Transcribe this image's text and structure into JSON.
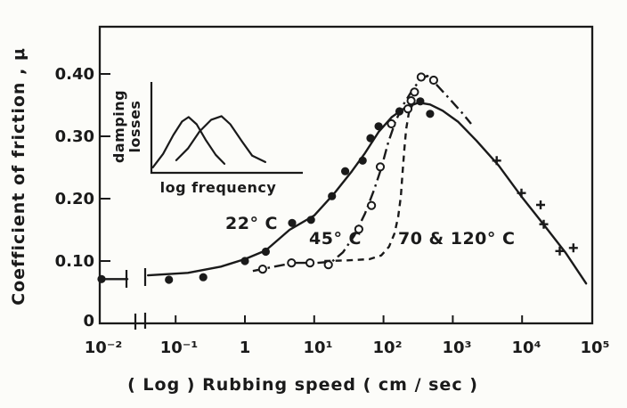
{
  "colors": {
    "ink": "#1a1a1a",
    "background": "#fcfcf9"
  },
  "chart_data": {
    "type": "line",
    "title": "",
    "xlabel": "( Log ) Rubbing speed ( cm / sec )",
    "ylabel": "Coefficient of friction , μ",
    "x_scale": "log",
    "x_range": [
      0.01,
      100000
    ],
    "ylim": [
      0,
      0.45
    ],
    "grid": false,
    "axis_break_x": [
      0.015,
      0.04
    ],
    "x_ticks": [
      {
        "value": 0.01,
        "label": "10⁻²"
      },
      {
        "value": 0.1,
        "label": "10⁻¹"
      },
      {
        "value": 1,
        "label": "1"
      },
      {
        "value": 10,
        "label": "10¹"
      },
      {
        "value": 100,
        "label": "10²"
      },
      {
        "value": 1000,
        "label": "10³"
      },
      {
        "value": 10000,
        "label": "10⁴"
      },
      {
        "value": 100000,
        "label": "10⁵"
      }
    ],
    "y_ticks": [
      {
        "value": 0.4,
        "label": "0.40"
      },
      {
        "value": 0.3,
        "label": "0.30"
      },
      {
        "value": 0.2,
        "label": "0.20"
      },
      {
        "value": 0.1,
        "label": "0.10"
      },
      {
        "value": 0,
        "label": "0"
      }
    ],
    "series": [
      {
        "name": "22° C",
        "marker": "filled-circle",
        "line": "solid",
        "points": [
          [
            0.01,
            0.071
          ],
          [
            0.08,
            0.07
          ],
          [
            0.25,
            0.074
          ],
          [
            1,
            0.1
          ],
          [
            2,
            0.115
          ],
          [
            4.8,
            0.161
          ],
          [
            9,
            0.166
          ],
          [
            18,
            0.204
          ],
          [
            28,
            0.244
          ],
          [
            50,
            0.261
          ],
          [
            65,
            0.297
          ],
          [
            85,
            0.316
          ],
          [
            170,
            0.34
          ],
          [
            340,
            0.356
          ],
          [
            470,
            0.336
          ]
        ],
        "plus_points": [
          [
            4300,
            0.261
          ],
          [
            9800,
            0.209
          ],
          [
            18500,
            0.19
          ],
          [
            20500,
            0.159
          ],
          [
            35000,
            0.116
          ],
          [
            55000,
            0.121
          ]
        ],
        "curve": [
          [
            0.04,
            0.077
          ],
          [
            0.15,
            0.081
          ],
          [
            0.45,
            0.091
          ],
          [
            1,
            0.103
          ],
          [
            2,
            0.117
          ],
          [
            4.4,
            0.15
          ],
          [
            10,
            0.173
          ],
          [
            19,
            0.207
          ],
          [
            35,
            0.244
          ],
          [
            54,
            0.273
          ],
          [
            85,
            0.307
          ],
          [
            132,
            0.331
          ],
          [
            206,
            0.346
          ],
          [
            320,
            0.354
          ],
          [
            470,
            0.351
          ],
          [
            715,
            0.341
          ],
          [
            1200,
            0.323
          ],
          [
            2200,
            0.293
          ],
          [
            4600,
            0.253
          ],
          [
            9700,
            0.204
          ],
          [
            20000,
            0.16
          ],
          [
            42000,
            0.114
          ],
          [
            84000,
            0.064
          ]
        ]
      },
      {
        "name": "45° C",
        "marker": "open-circle",
        "line": "dash-dot",
        "points": [
          [
            1.8,
            0.087
          ],
          [
            4.7,
            0.097
          ],
          [
            8.7,
            0.097
          ],
          [
            16,
            0.094
          ],
          [
            44,
            0.151
          ],
          [
            67,
            0.189
          ],
          [
            90,
            0.251
          ],
          [
            130,
            0.32
          ],
          [
            225,
            0.344
          ],
          [
            250,
            0.357
          ],
          [
            280,
            0.371
          ],
          [
            350,
            0.395
          ],
          [
            530,
            0.39
          ]
        ],
        "curve": [
          [
            1.3,
            0.084
          ],
          [
            2.4,
            0.09
          ],
          [
            5,
            0.097
          ],
          [
            11,
            0.097
          ],
          [
            18,
            0.099
          ],
          [
            26,
            0.114
          ],
          [
            38,
            0.141
          ],
          [
            54,
            0.176
          ],
          [
            73,
            0.214
          ],
          [
            93,
            0.249
          ],
          [
            117,
            0.29
          ],
          [
            149,
            0.324
          ],
          [
            194,
            0.351
          ],
          [
            260,
            0.374
          ],
          [
            340,
            0.391
          ],
          [
            430,
            0.397
          ],
          [
            580,
            0.383
          ],
          [
            900,
            0.36
          ],
          [
            1330,
            0.339
          ],
          [
            1840,
            0.32
          ]
        ]
      },
      {
        "name": "70 & 120° C",
        "marker": "none",
        "line": "dashed",
        "points": [],
        "curve": [
          [
            14,
            0.1
          ],
          [
            30,
            0.101
          ],
          [
            63,
            0.103
          ],
          [
            93,
            0.109
          ],
          [
            120,
            0.123
          ],
          [
            144,
            0.144
          ],
          [
            163,
            0.171
          ],
          [
            178,
            0.204
          ],
          [
            188,
            0.24
          ],
          [
            200,
            0.279
          ],
          [
            212,
            0.311
          ],
          [
            232,
            0.337
          ],
          [
            270,
            0.354
          ]
        ]
      }
    ],
    "inset": {
      "xlabel": "log frequency",
      "ylabel_line1": "damping",
      "ylabel_line2": "losses",
      "description": "two overlapping bell-shaped curves of damping losses vs log frequency",
      "curves": [
        [
          [
            0.01,
            0.06
          ],
          [
            0.08,
            0.21
          ],
          [
            0.15,
            0.42
          ],
          [
            0.21,
            0.57
          ],
          [
            0.255,
            0.62
          ],
          [
            0.31,
            0.54
          ],
          [
            0.37,
            0.37
          ],
          [
            0.44,
            0.2
          ],
          [
            0.5,
            0.1
          ]
        ],
        [
          [
            0.17,
            0.14
          ],
          [
            0.25,
            0.27
          ],
          [
            0.33,
            0.46
          ],
          [
            0.41,
            0.59
          ],
          [
            0.48,
            0.63
          ],
          [
            0.54,
            0.54
          ],
          [
            0.62,
            0.35
          ],
          [
            0.69,
            0.19
          ],
          [
            0.78,
            0.12
          ]
        ]
      ]
    }
  }
}
